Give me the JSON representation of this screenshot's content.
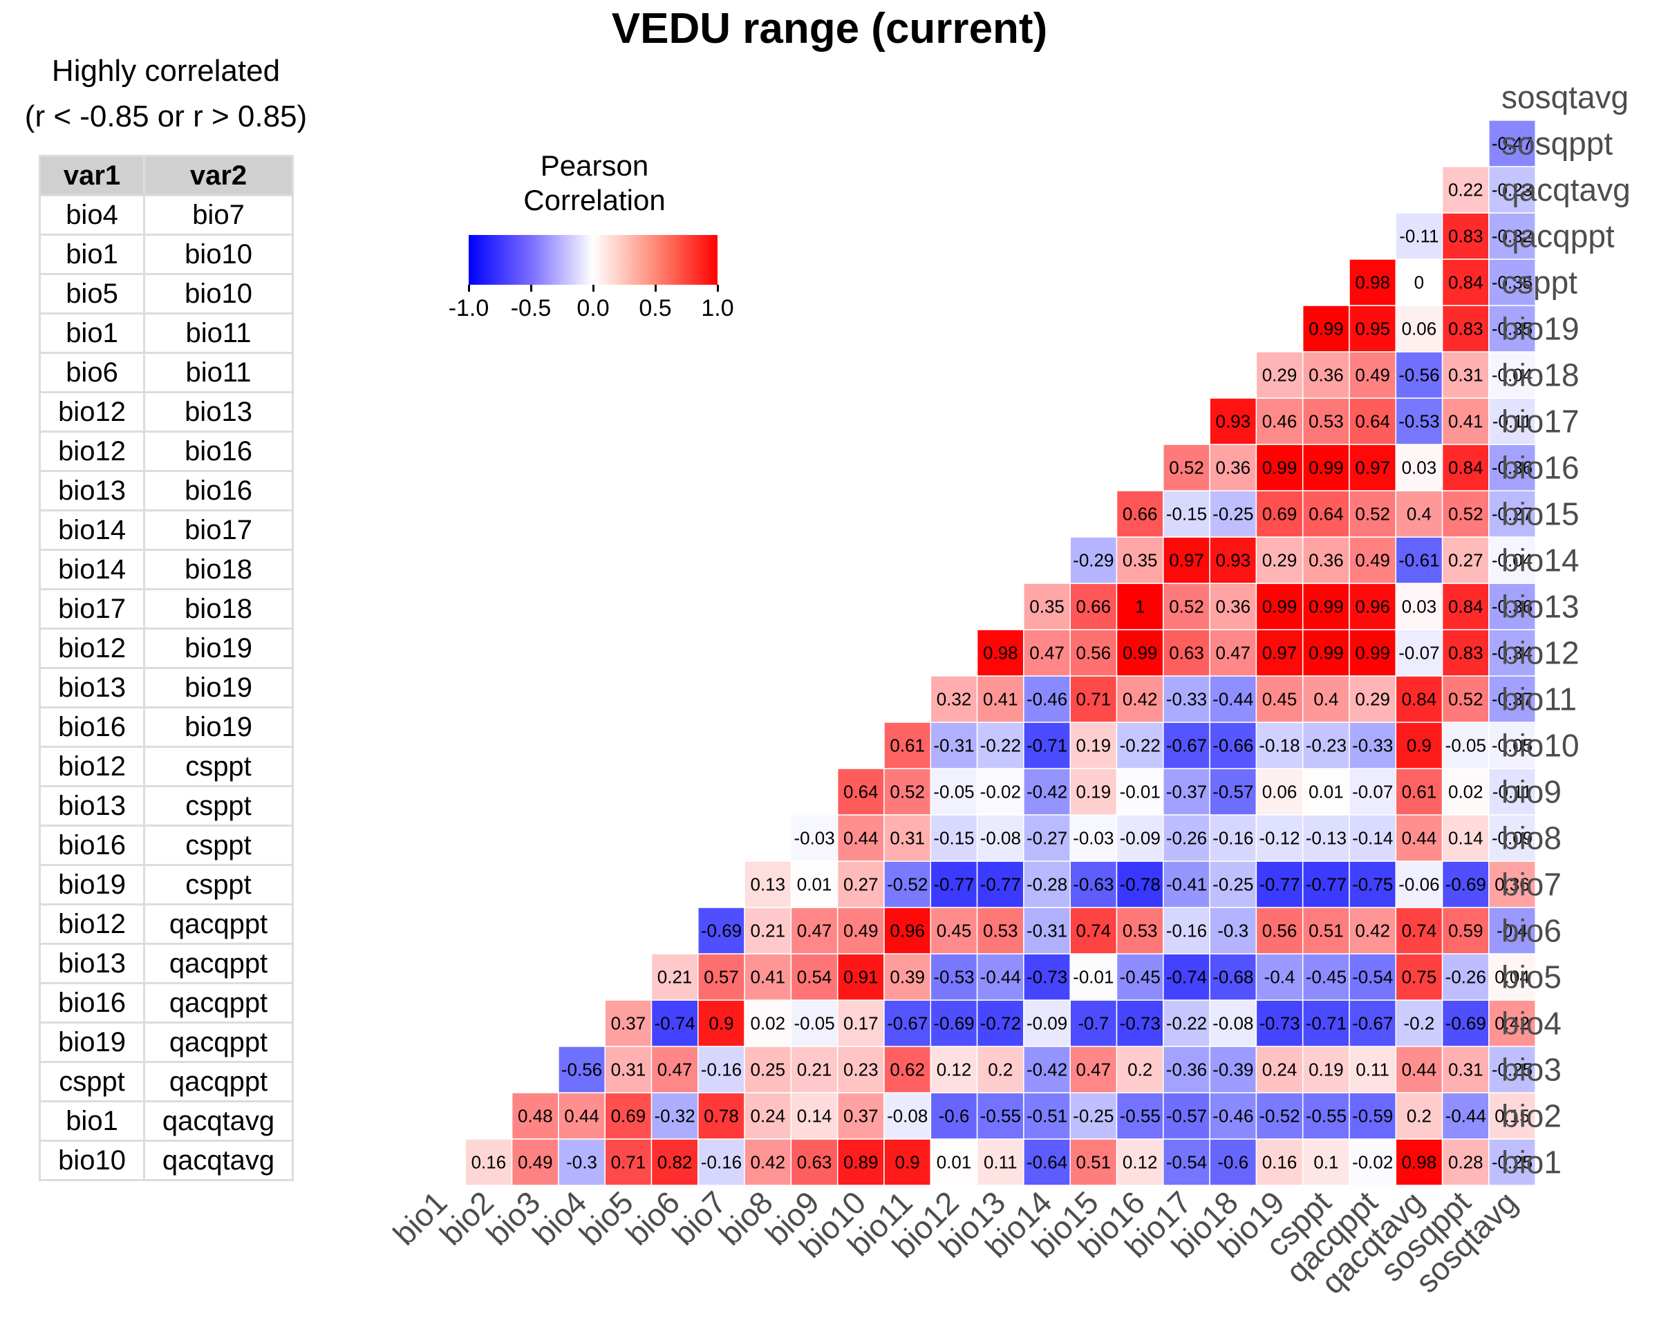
{
  "title": "VEDU range (current)",
  "table": {
    "caption_line1": "Highly correlated",
    "caption_line2": "(r < -0.85 or r > 0.85)",
    "headers": [
      "var1",
      "var2"
    ],
    "rows": [
      [
        "bio4",
        "bio7"
      ],
      [
        "bio1",
        "bio10"
      ],
      [
        "bio5",
        "bio10"
      ],
      [
        "bio1",
        "bio11"
      ],
      [
        "bio6",
        "bio11"
      ],
      [
        "bio12",
        "bio13"
      ],
      [
        "bio12",
        "bio16"
      ],
      [
        "bio13",
        "bio16"
      ],
      [
        "bio14",
        "bio17"
      ],
      [
        "bio14",
        "bio18"
      ],
      [
        "bio17",
        "bio18"
      ],
      [
        "bio12",
        "bio19"
      ],
      [
        "bio13",
        "bio19"
      ],
      [
        "bio16",
        "bio19"
      ],
      [
        "bio12",
        "csppt"
      ],
      [
        "bio13",
        "csppt"
      ],
      [
        "bio16",
        "csppt"
      ],
      [
        "bio19",
        "csppt"
      ],
      [
        "bio12",
        "qacqppt"
      ],
      [
        "bio13",
        "qacqppt"
      ],
      [
        "bio16",
        "qacqppt"
      ],
      [
        "bio19",
        "qacqppt"
      ],
      [
        "csppt",
        "qacqppt"
      ],
      [
        "bio1",
        "qacqtavg"
      ],
      [
        "bio10",
        "qacqtavg"
      ]
    ]
  },
  "legend": {
    "title_line1": "Pearson",
    "title_line2": "Correlation",
    "ticks": [
      "-1.0",
      "-0.5",
      "0.0",
      "0.5",
      "1.0"
    ],
    "tick_values": [
      -1.0,
      -0.5,
      0.0,
      0.5,
      1.0
    ],
    "colors": {
      "low": "#0000ff",
      "mid": "#ffffff",
      "high": "#ff0000"
    }
  },
  "chart_data": {
    "type": "heatmap",
    "title": "VEDU range (current)",
    "variables": [
      "bio1",
      "bio2",
      "bio3",
      "bio4",
      "bio5",
      "bio6",
      "bio7",
      "bio8",
      "bio9",
      "bio10",
      "bio11",
      "bio12",
      "bio13",
      "bio14",
      "bio15",
      "bio16",
      "bio17",
      "bio18",
      "bio19",
      "csppt",
      "qacqppt",
      "qacqtavg",
      "sosqppt",
      "sosqtavg"
    ],
    "rows": [
      {
        "row": "bio1",
        "labels": [
          "0.16",
          "0.49",
          "-0.3",
          "0.71",
          "0.82",
          "-0.16",
          "0.42",
          "0.63",
          "0.89",
          "0.9",
          "0.01",
          "0.11",
          "-0.64",
          "0.51",
          "0.12",
          "-0.54",
          "-0.6",
          "0.16",
          "0.1",
          "-0.02",
          "0.98",
          "0.28",
          "-0.25"
        ]
      },
      {
        "row": "bio2",
        "labels": [
          "0.48",
          "0.44",
          "0.69",
          "-0.32",
          "0.78",
          "0.24",
          "0.14",
          "0.37",
          "-0.08",
          "-0.6",
          "-0.55",
          "-0.51",
          "-0.25",
          "-0.55",
          "-0.57",
          "-0.46",
          "-0.52",
          "-0.55",
          "-0.59",
          "0.2",
          "-0.44",
          "0.15"
        ]
      },
      {
        "row": "bio3",
        "labels": [
          "-0.56",
          "0.31",
          "0.47",
          "-0.16",
          "0.25",
          "0.21",
          "0.23",
          "0.62",
          "0.12",
          "0.2",
          "-0.42",
          "0.47",
          "0.2",
          "-0.36",
          "-0.39",
          "0.24",
          "0.19",
          "0.11",
          "0.44",
          "0.31",
          "-0.25"
        ]
      },
      {
        "row": "bio4",
        "labels": [
          "0.37",
          "-0.74",
          "0.9",
          "0.02",
          "-0.05",
          "0.17",
          "-0.67",
          "-0.69",
          "-0.72",
          "-0.09",
          "-0.7",
          "-0.73",
          "-0.22",
          "-0.08",
          "-0.73",
          "-0.71",
          "-0.67",
          "-0.2",
          "-0.69",
          "0.42"
        ]
      },
      {
        "row": "bio5",
        "labels": [
          "0.21",
          "0.57",
          "0.41",
          "0.54",
          "0.91",
          "0.39",
          "-0.53",
          "-0.44",
          "-0.73",
          "-0.01",
          "-0.45",
          "-0.74",
          "-0.68",
          "-0.4",
          "-0.45",
          "-0.54",
          "0.75",
          "-0.26",
          "0.04"
        ]
      },
      {
        "row": "bio6",
        "labels": [
          "-0.69",
          "0.21",
          "0.47",
          "0.49",
          "0.96",
          "0.45",
          "0.53",
          "-0.31",
          "0.74",
          "0.53",
          "-0.16",
          "-0.3",
          "0.56",
          "0.51",
          "0.42",
          "0.74",
          "0.59",
          "-0.4"
        ]
      },
      {
        "row": "bio7",
        "labels": [
          "0.13",
          "0.01",
          "0.27",
          "-0.52",
          "-0.77",
          "-0.77",
          "-0.28",
          "-0.63",
          "-0.78",
          "-0.41",
          "-0.25",
          "-0.77",
          "-0.77",
          "-0.75",
          "-0.06",
          "-0.69",
          "0.36"
        ]
      },
      {
        "row": "bio8",
        "labels": [
          "-0.03",
          "0.44",
          "0.31",
          "-0.15",
          "-0.08",
          "-0.27",
          "-0.03",
          "-0.09",
          "-0.26",
          "-0.16",
          "-0.12",
          "-0.13",
          "-0.14",
          "0.44",
          "0.14",
          "-0.09"
        ]
      },
      {
        "row": "bio9",
        "labels": [
          "0.64",
          "0.52",
          "-0.05",
          "-0.02",
          "-0.42",
          "0.19",
          "-0.01",
          "-0.37",
          "-0.57",
          "0.06",
          "0.01",
          "-0.07",
          "0.61",
          "0.02",
          "-0.11"
        ]
      },
      {
        "row": "bio10",
        "labels": [
          "0.61",
          "-0.31",
          "-0.22",
          "-0.71",
          "0.19",
          "-0.22",
          "-0.67",
          "-0.66",
          "-0.18",
          "-0.23",
          "-0.33",
          "0.9",
          "-0.05",
          "-0.05"
        ]
      },
      {
        "row": "bio11",
        "labels": [
          "0.32",
          "0.41",
          "-0.46",
          "0.71",
          "0.42",
          "-0.33",
          "-0.44",
          "0.45",
          "0.4",
          "0.29",
          "0.84",
          "0.52",
          "-0.37"
        ]
      },
      {
        "row": "bio12",
        "labels": [
          "0.98",
          "0.47",
          "0.56",
          "0.99",
          "0.63",
          "0.47",
          "0.97",
          "0.99",
          "0.99",
          "-0.07",
          "0.83",
          "-0.34"
        ]
      },
      {
        "row": "bio13",
        "labels": [
          "0.35",
          "0.66",
          "1",
          "0.52",
          "0.36",
          "0.99",
          "0.99",
          "0.96",
          "0.03",
          "0.84",
          "-0.36"
        ]
      },
      {
        "row": "bio14",
        "labels": [
          "-0.29",
          "0.35",
          "0.97",
          "0.93",
          "0.29",
          "0.36",
          "0.49",
          "-0.61",
          "0.27",
          "-0.04"
        ]
      },
      {
        "row": "bio15",
        "labels": [
          "0.66",
          "-0.15",
          "-0.25",
          "0.69",
          "0.64",
          "0.52",
          "0.4",
          "0.52",
          "-0.27"
        ]
      },
      {
        "row": "bio16",
        "labels": [
          "0.52",
          "0.36",
          "0.99",
          "0.99",
          "0.97",
          "0.03",
          "0.84",
          "-0.36"
        ]
      },
      {
        "row": "bio17",
        "labels": [
          "0.93",
          "0.46",
          "0.53",
          "0.64",
          "-0.53",
          "0.41",
          "-0.11"
        ]
      },
      {
        "row": "bio18",
        "labels": [
          "0.29",
          "0.36",
          "0.49",
          "-0.56",
          "0.31",
          "-0.04"
        ]
      },
      {
        "row": "bio19",
        "labels": [
          "0.99",
          "0.95",
          "0.06",
          "0.83",
          "-0.35"
        ]
      },
      {
        "row": "csppt",
        "labels": [
          "0.98",
          "0",
          "0.84",
          "-0.35"
        ]
      },
      {
        "row": "qacqppt",
        "labels": [
          "-0.11",
          "0.83",
          "-0.32"
        ]
      },
      {
        "row": "qacqtavg",
        "labels": [
          "0.22",
          "-0.23"
        ]
      },
      {
        "row": "sosqppt",
        "labels": [
          "-0.47"
        ]
      },
      {
        "row": "sosqtavg",
        "labels": []
      }
    ]
  }
}
